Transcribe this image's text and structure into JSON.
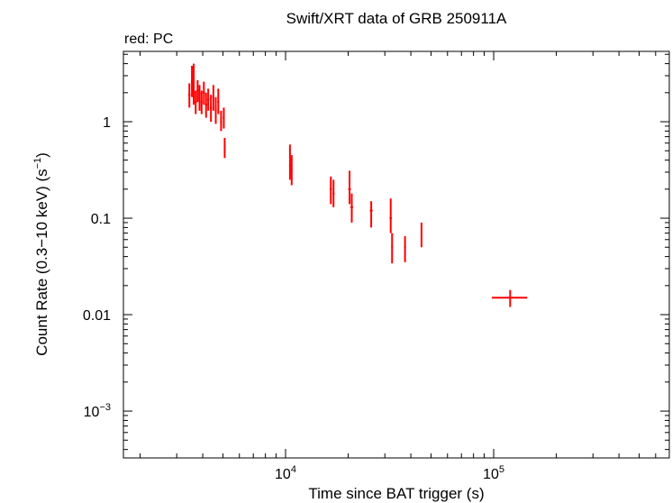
{
  "chart_data": {
    "type": "scatter",
    "title": "Swift/XRT data of GRB 250911A",
    "subtitle": "red: PC",
    "x_label": "Time since BAT trigger (s)",
    "y_label": {
      "text": "Count Rate (0.3−10 keV) (s",
      "superscript": "−1",
      "suffix": ")"
    },
    "x_log": true,
    "y_log": true,
    "xlim": [
      1663,
      698000
    ],
    "ylim": [
      0.000327,
      5.36
    ],
    "xticks": [
      {
        "value": 10000,
        "label": "10",
        "exponent": "4"
      },
      {
        "value": 100000,
        "label": "10",
        "exponent": "5"
      }
    ],
    "yticks": [
      1,
      0.1,
      0.01,
      {
        "value": 0.001,
        "label": "10",
        "exponent": "−3"
      }
    ],
    "series": [
      {
        "name": "PC",
        "color": "#ff0000",
        "x": [
          3450,
          3550,
          3620,
          3700,
          3780,
          3860,
          3950,
          4050,
          4150,
          4250,
          4380,
          4500,
          4620,
          4750,
          4900,
          5050,
          5100,
          10500,
          10700,
          16500,
          17000,
          20300,
          20800,
          25800,
          32000,
          32500,
          37500,
          45000,
          120000
        ],
        "x_lower": [
          3410,
          3510,
          3580,
          3660,
          3740,
          3820,
          3910,
          4000,
          4100,
          4200,
          4330,
          4450,
          4570,
          4700,
          4850,
          4990,
          5050,
          10400,
          10600,
          16300,
          16800,
          20000,
          20500,
          25400,
          31600,
          32200,
          37100,
          44600,
          98000
        ],
        "x_upper": [
          3490,
          3590,
          3660,
          3740,
          3820,
          3900,
          3990,
          4100,
          4200,
          4300,
          4430,
          4550,
          4670,
          4800,
          4950,
          5100,
          5150,
          10600,
          10800,
          16700,
          17200,
          20600,
          21100,
          26200,
          32400,
          32800,
          37900,
          45400,
          145000
        ],
        "values": [
          1.9,
          2.6,
          2.0,
          1.6,
          2.1,
          1.8,
          1.6,
          2.0,
          1.5,
          1.7,
          1.4,
          1.8,
          1.3,
          1.6,
          1.0,
          1.1,
          0.55,
          0.35,
          0.32,
          0.2,
          0.18,
          0.2,
          0.13,
          0.12,
          0.1,
          0.05,
          0.05,
          0.065,
          0.015
        ],
        "y_lower": [
          1.4,
          1.8,
          1.5,
          1.2,
          1.6,
          1.3,
          1.2,
          1.5,
          1.1,
          1.3,
          1.0,
          1.3,
          0.95,
          1.2,
          0.8,
          0.85,
          0.42,
          0.25,
          0.22,
          0.14,
          0.13,
          0.14,
          0.09,
          0.08,
          0.07,
          0.034,
          0.035,
          0.05,
          0.012
        ],
        "y_upper": [
          2.5,
          3.8,
          4.0,
          2.1,
          2.7,
          2.4,
          2.1,
          2.6,
          2.0,
          2.2,
          1.9,
          2.4,
          1.8,
          2.2,
          1.3,
          1.4,
          0.68,
          0.58,
          0.45,
          0.27,
          0.25,
          0.31,
          0.18,
          0.15,
          0.16,
          0.07,
          0.065,
          0.09,
          0.018
        ]
      }
    ]
  }
}
